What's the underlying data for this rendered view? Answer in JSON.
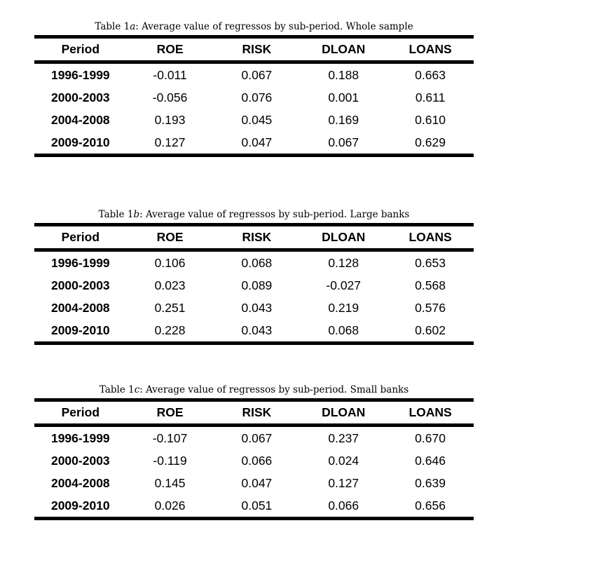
{
  "page": {
    "background": "#ffffff",
    "text_color": "#000000",
    "rule_color": "#000000"
  },
  "tables": [
    {
      "caption": {
        "prefix": "Table 1",
        "letter": "a",
        "rest": ":  Average value of regressos by sub-period.  Whole sample"
      },
      "columns": [
        "Period",
        "ROE",
        "RISK",
        "DLOAN",
        "LOANS"
      ],
      "rows": [
        [
          "1996-1999",
          "-0.011",
          "0.067",
          "0.188",
          "0.663"
        ],
        [
          "2000-2003",
          "-0.056",
          "0.076",
          "0.001",
          "0.611"
        ],
        [
          "2004-2008",
          "0.193",
          "0.045",
          "0.169",
          "0.610"
        ],
        [
          "2009-2010",
          "0.127",
          "0.047",
          "0.067",
          "0.629"
        ]
      ]
    },
    {
      "caption": {
        "prefix": "Table 1",
        "letter": "b",
        "rest": ":  Average value of regressos by sub-period.  Large banks"
      },
      "columns": [
        "Period",
        "ROE",
        "RISK",
        "DLOAN",
        "LOANS"
      ],
      "rows": [
        [
          "1996-1999",
          "0.106",
          "0.068",
          "0.128",
          "0.653"
        ],
        [
          "2000-2003",
          "0.023",
          "0.089",
          "-0.027",
          "0.568"
        ],
        [
          "2004-2008",
          "0.251",
          "0.043",
          "0.219",
          "0.576"
        ],
        [
          "2009-2010",
          "0.228",
          "0.043",
          "0.068",
          "0.602"
        ]
      ]
    },
    {
      "caption": {
        "prefix": "Table 1",
        "letter": "c",
        "rest": ":  Average value of regressos by sub-period.  Small banks"
      },
      "columns": [
        "Period",
        "ROE",
        "RISK",
        "DLOAN",
        "LOANS"
      ],
      "rows": [
        [
          "1996-1999",
          "-0.107",
          "0.067",
          "0.237",
          "0.670"
        ],
        [
          "2000-2003",
          "-0.119",
          "0.066",
          "0.024",
          "0.646"
        ],
        [
          "2004-2008",
          "0.145",
          "0.047",
          "0.127",
          "0.639"
        ],
        [
          "2009-2010",
          "0.026",
          "0.051",
          "0.066",
          "0.656"
        ]
      ]
    }
  ]
}
